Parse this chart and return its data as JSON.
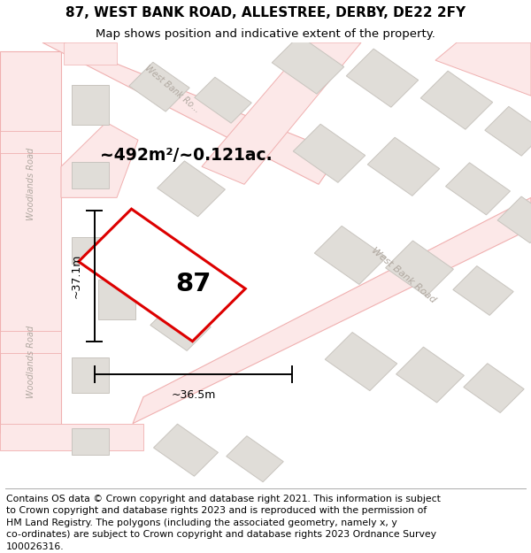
{
  "title": "87, WEST BANK ROAD, ALLESTREE, DERBY, DE22 2FY",
  "subtitle": "Map shows position and indicative extent of the property.",
  "footer_lines": [
    "Contains OS data © Crown copyright and database right 2021. This information is subject",
    "to Crown copyright and database rights 2023 and is reproduced with the permission of",
    "HM Land Registry. The polygons (including the associated geometry, namely x, y",
    "co-ordinates) are subject to Crown copyright and database rights 2023 Ordnance Survey",
    "100026316."
  ],
  "map_bg": "#f8f7f5",
  "road_line_color": "#f0b0b0",
  "road_fill_color": "#fce8e8",
  "building_color": "#e0ddd8",
  "building_outline": "#c8c4be",
  "highlight_color": "#dd0000",
  "property_number": "87",
  "area_text": "~492m²/~0.121ac.",
  "width_label": "~36.5m",
  "height_label": "~37.1m",
  "title_fontsize": 11,
  "subtitle_fontsize": 9.5,
  "footer_fontsize": 7.8,
  "road_label_color": "#b0a8a0",
  "dim_label_fontsize": 9
}
